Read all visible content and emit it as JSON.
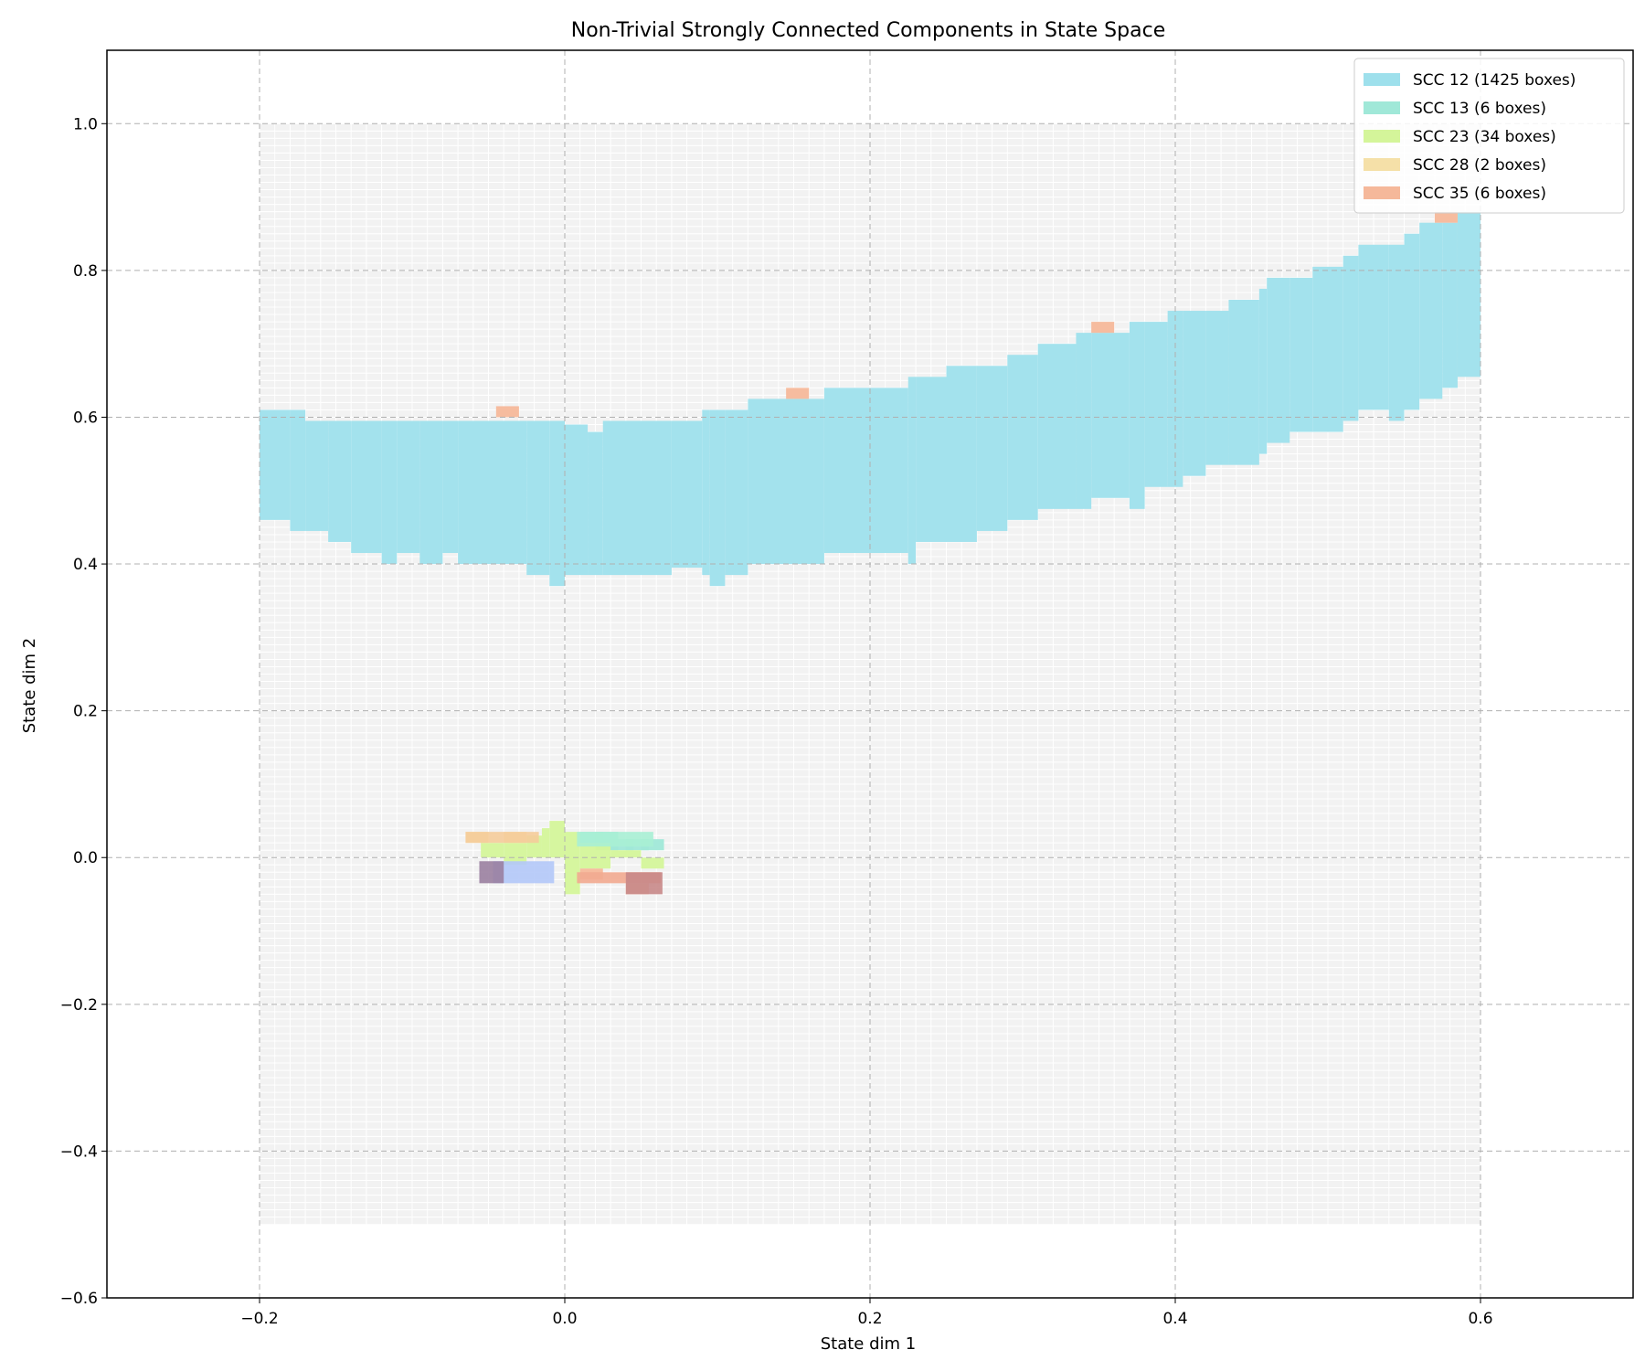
{
  "chart_data": {
    "type": "heatmap",
    "title": "Non-Trivial Strongly Connected Components in State Space",
    "xlabel": "State dim 1",
    "ylabel": "State dim 2",
    "xlim": [
      -0.3,
      0.7
    ],
    "ylim": [
      -0.6,
      1.1
    ],
    "xticks": [
      -0.2,
      0.0,
      0.2,
      0.4,
      0.6
    ],
    "xtick_labels": [
      "−0.2",
      "0.0",
      "0.2",
      "0.4",
      "0.6"
    ],
    "yticks": [
      -0.6,
      -0.4,
      -0.2,
      0.0,
      0.2,
      0.4,
      0.6,
      0.8,
      1.0
    ],
    "ytick_labels": [
      "−0.6",
      "−0.4",
      "−0.2",
      "0.0",
      "0.2",
      "0.4",
      "0.6",
      "0.8",
      "1.0"
    ],
    "grid": true,
    "legend_position": "top-right",
    "background_grid": {
      "x_range": [
        -0.2,
        0.6
      ],
      "y_range": [
        -0.5,
        1.0
      ],
      "color": "#f2f2f2",
      "line_color": "#ffffff"
    },
    "series": [
      {
        "name": "SCC 12 (1425 boxes)",
        "color": "#9ee0ec",
        "columns": [
          [
            -0.2,
            0.46,
            0.61
          ],
          [
            -0.18,
            0.445,
            0.61
          ],
          [
            -0.17,
            0.445,
            0.595
          ],
          [
            -0.155,
            0.43,
            0.595
          ],
          [
            -0.14,
            0.415,
            0.595
          ],
          [
            -0.12,
            0.4,
            0.595
          ],
          [
            -0.11,
            0.415,
            0.595
          ],
          [
            -0.095,
            0.4,
            0.595
          ],
          [
            -0.08,
            0.415,
            0.595
          ],
          [
            -0.07,
            0.4,
            0.595
          ],
          [
            -0.05,
            0.4,
            0.595
          ],
          [
            -0.025,
            0.385,
            0.595
          ],
          [
            -0.01,
            0.37,
            0.595
          ],
          [
            0.0,
            0.385,
            0.59
          ],
          [
            0.015,
            0.385,
            0.58
          ],
          [
            0.025,
            0.385,
            0.595
          ],
          [
            0.05,
            0.385,
            0.595
          ],
          [
            0.07,
            0.395,
            0.595
          ],
          [
            0.09,
            0.385,
            0.61
          ],
          [
            0.095,
            0.37,
            0.61
          ],
          [
            0.105,
            0.385,
            0.61
          ],
          [
            0.12,
            0.4,
            0.625
          ],
          [
            0.15,
            0.4,
            0.625
          ],
          [
            0.17,
            0.415,
            0.64
          ],
          [
            0.2,
            0.415,
            0.64
          ],
          [
            0.225,
            0.4,
            0.655
          ],
          [
            0.23,
            0.43,
            0.655
          ],
          [
            0.25,
            0.43,
            0.67
          ],
          [
            0.27,
            0.445,
            0.67
          ],
          [
            0.29,
            0.46,
            0.685
          ],
          [
            0.31,
            0.475,
            0.7
          ],
          [
            0.335,
            0.475,
            0.715
          ],
          [
            0.345,
            0.49,
            0.715
          ],
          [
            0.37,
            0.475,
            0.73
          ],
          [
            0.38,
            0.505,
            0.73
          ],
          [
            0.395,
            0.505,
            0.745
          ],
          [
            0.405,
            0.52,
            0.745
          ],
          [
            0.42,
            0.535,
            0.745
          ],
          [
            0.435,
            0.535,
            0.76
          ],
          [
            0.455,
            0.55,
            0.775
          ],
          [
            0.46,
            0.565,
            0.79
          ],
          [
            0.475,
            0.58,
            0.79
          ],
          [
            0.49,
            0.58,
            0.805
          ],
          [
            0.51,
            0.595,
            0.82
          ],
          [
            0.52,
            0.61,
            0.835
          ],
          [
            0.54,
            0.595,
            0.835
          ],
          [
            0.55,
            0.61,
            0.85
          ],
          [
            0.56,
            0.625,
            0.865
          ],
          [
            0.575,
            0.64,
            0.865
          ],
          [
            0.585,
            0.655,
            0.88
          ]
        ]
      },
      {
        "name": "SCC 13 (6 boxes)",
        "color": "#a0e8d8",
        "boxes": [
          [
            0.01,
            0.02
          ],
          [
            0.02,
            0.02
          ],
          [
            0.03,
            0.01
          ],
          [
            0.04,
            0.01
          ],
          [
            0.05,
            0.01
          ],
          [
            0.02,
            0.01
          ]
        ]
      },
      {
        "name": "SCC 23 (34 boxes)",
        "color": "#d4f59a",
        "columns": [
          [
            -0.055,
            0.0,
            0.02
          ],
          [
            -0.04,
            -0.01,
            0.02
          ],
          [
            -0.025,
            0.0,
            0.03
          ],
          [
            -0.015,
            0.0,
            0.04
          ],
          [
            -0.01,
            0.0,
            0.05
          ],
          [
            0.0,
            -0.05,
            0.035
          ],
          [
            0.01,
            -0.015,
            0.02
          ],
          [
            0.03,
            0.0,
            0.01
          ],
          [
            0.05,
            -0.015,
            0.0
          ]
        ]
      },
      {
        "name": "SCC 28 (2 boxes)",
        "color": "#f5e0a8",
        "boxes": [
          [
            -0.065,
            0.02
          ],
          [
            -0.04,
            0.02
          ]
        ]
      },
      {
        "name": "SCC 35 (6 boxes)",
        "color": "#f5b89a",
        "boxes": [
          [
            -0.045,
            0.6
          ],
          [
            0.145,
            0.625
          ],
          [
            0.345,
            0.715
          ],
          [
            0.57,
            0.865
          ],
          [
            0.01,
            -0.03
          ],
          [
            0.04,
            -0.05
          ]
        ]
      }
    ],
    "overlap_patches": [
      {
        "color": "#f5cc9a",
        "box": [
          -0.065,
          0.02,
          0.048,
          0.015
        ]
      },
      {
        "color": "#b3c8f8",
        "box": [
          -0.047,
          -0.035,
          0.04,
          0.03
        ]
      },
      {
        "color": "#9a80a0",
        "box": [
          -0.056,
          -0.035,
          0.016,
          0.03
        ]
      },
      {
        "color": "#a8f0d4",
        "box": [
          0.008,
          0.015,
          0.05,
          0.02
        ]
      },
      {
        "color": "#f2aa90",
        "box": [
          0.008,
          -0.035,
          0.055,
          0.015
        ]
      },
      {
        "color": "#c88888",
        "box": [
          0.04,
          -0.05,
          0.024,
          0.03
        ]
      }
    ]
  }
}
